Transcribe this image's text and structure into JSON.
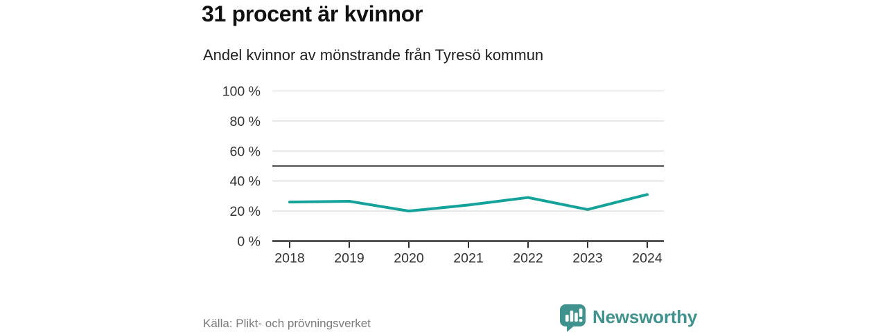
{
  "header": {
    "title": "31 procent är kvinnor",
    "subtitle": "Andel kvinnor av mönstrande från Tyresö kommun"
  },
  "chart_data": {
    "type": "line",
    "title": "31 procent är kvinnor",
    "subtitle": "Andel kvinnor av mönstrande från Tyresö kommun",
    "categories": [
      "2018",
      "2019",
      "2020",
      "2021",
      "2022",
      "2023",
      "2024"
    ],
    "series": [
      {
        "name": "Andel kvinnor av mönstrande",
        "values": [
          26,
          26.5,
          20,
          24,
          29,
          21,
          31
        ]
      }
    ],
    "unit": "%",
    "xlabel": "",
    "ylabel": "",
    "ylim": [
      0,
      100
    ],
    "y_ticks": [
      0,
      20,
      40,
      60,
      80,
      100
    ],
    "y_tick_labels": [
      "0 %",
      "20 %",
      "40 %",
      "60 %",
      "80 %",
      "100 %"
    ],
    "reference_line": 50,
    "grid": true,
    "legend": "none",
    "line_color": "#14a29a",
    "gridline_color": "#d9d9d9",
    "reference_line_color": "#4d4d4d",
    "axis_color": "#2e2e2e",
    "tick_label_color": "#333333"
  },
  "footer": {
    "source": "Källa: Plikt- och prövningsverket",
    "brand": "Newsworthy",
    "brand_color": "#3f928d",
    "brand_icon": "speech-bubble-bar-chart"
  }
}
